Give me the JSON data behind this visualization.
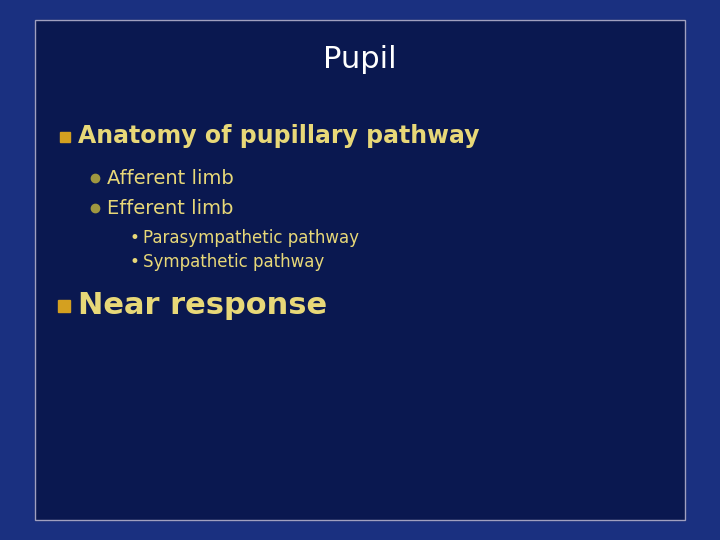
{
  "title": "Pupil",
  "title_color": "#FFFFFF",
  "title_fontsize": 22,
  "background_color": "#0D2060",
  "border_color": "#A0A0C0",
  "outer_bg": "#1A3080",
  "bullet1_text": "Anatomy of pupillary pathway",
  "bullet1_color": "#E8D878",
  "bullet1_fontsize": 17,
  "bullet1_marker_color": "#D4A020",
  "sub1_text": "Afferent limb",
  "sub2_text": "Efferent limb",
  "sub_color": "#E8D878",
  "sub_fontsize": 14,
  "sub_marker_color": "#A09840",
  "subsub1_text": "Parasympathetic pathway",
  "subsub2_text": "Sympathetic pathway",
  "subsub_color": "#E8D878",
  "subsub_fontsize": 12,
  "bullet2_text": "Near response",
  "bullet2_color": "#E8D878",
  "bullet2_fontsize": 22,
  "bullet2_marker_color": "#D4A020",
  "inner_bg": "#0A1850"
}
